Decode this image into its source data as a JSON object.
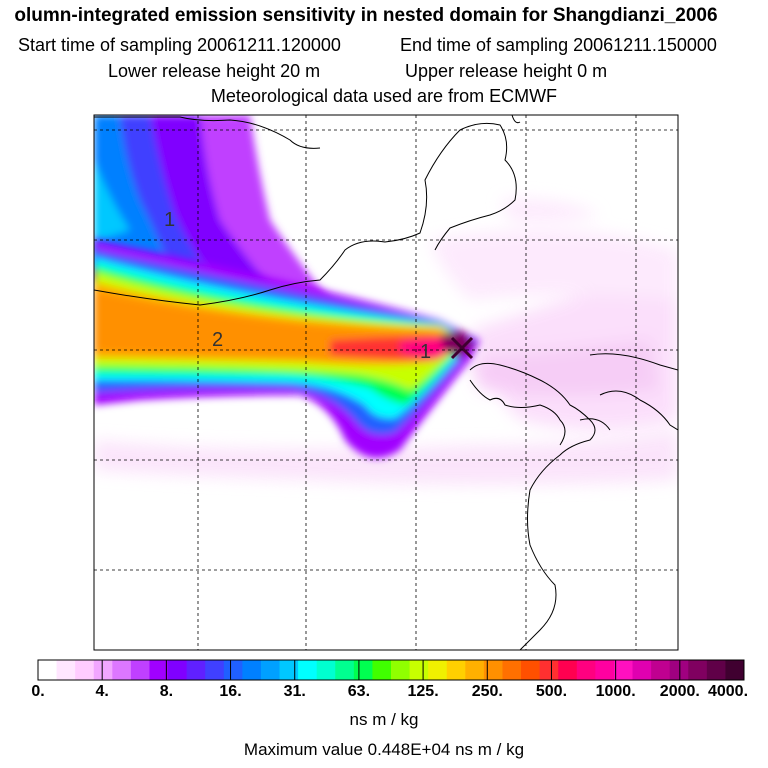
{
  "header": {
    "title": "olumn-integrated emission sensitivity in nested domain for Shangdianzi_2006",
    "start_label": "Start time of sampling 20061211.120000",
    "end_label": "End time of sampling 20061211.150000",
    "lower_label": "Lower release height   20 m",
    "upper_label": "Upper release height    0 m",
    "met_label": "Meteorological data used are from ECMWF"
  },
  "map": {
    "plume_labels": [
      "1",
      "2",
      "1"
    ]
  },
  "colorbar": {
    "labels": [
      "0.",
      "4.",
      "8.",
      "16.",
      "31.",
      "63.",
      "125.",
      "250.",
      "500.",
      "1000.",
      "2000.",
      "4000."
    ],
    "colors": [
      "#ffffff",
      "#ffe6ff",
      "#ffccff",
      "#f2a6ff",
      "#dd77ff",
      "#c040ff",
      "#a000ff",
      "#8000ff",
      "#6020ff",
      "#4040ff",
      "#2060ff",
      "#0080ff",
      "#00a0ff",
      "#00c8ff",
      "#00ffff",
      "#00ffd0",
      "#00ff90",
      "#00ff50",
      "#40ff00",
      "#90ff00",
      "#c8ff00",
      "#f0f000",
      "#ffd000",
      "#ffb000",
      "#ff9000",
      "#ff7000",
      "#ff5000",
      "#ff3030",
      "#ff0050",
      "#ff0080",
      "#ff00a0",
      "#ff10c0",
      "#e000b0",
      "#c00090",
      "#a00080",
      "#800060",
      "#600048",
      "#400030"
    ],
    "unit": "ns m / kg"
  },
  "max_value_text": "Maximum value  0.448E+04 ns m / kg"
}
